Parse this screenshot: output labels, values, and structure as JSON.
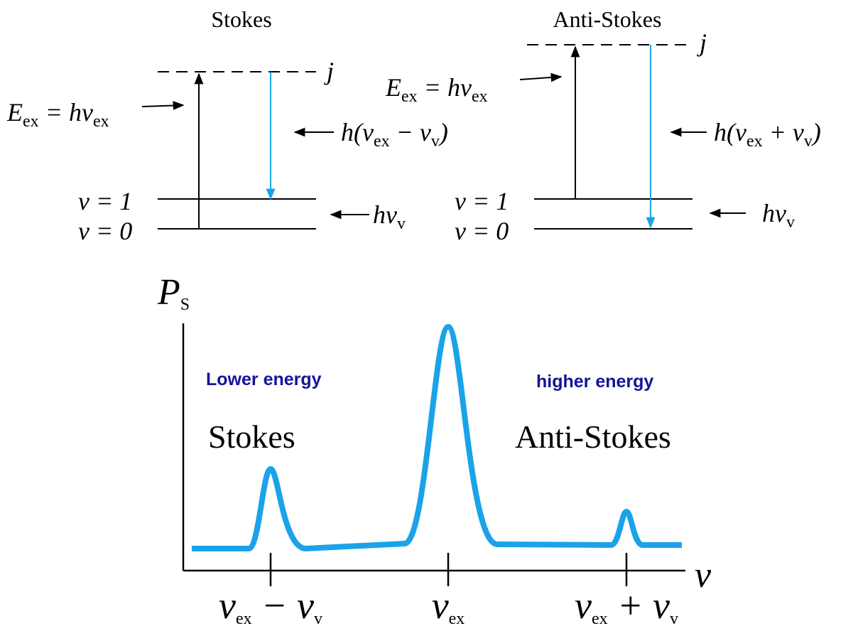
{
  "stokes": {
    "title": "Stokes",
    "virtual_level": "j",
    "excitation": [
      {
        "t": "E"
      },
      {
        "s": "ex"
      },
      {
        "t": " = hν"
      },
      {
        "s": "ex"
      }
    ],
    "emission": [
      {
        "t": "h(ν"
      },
      {
        "s": "ex"
      },
      {
        "t": " − ν"
      },
      {
        "s": "v"
      },
      {
        "t": ")"
      }
    ],
    "level_1": "v = 1",
    "level_0": "v = 0",
    "vibration": [
      {
        "t": "hν"
      },
      {
        "s": "v"
      }
    ]
  },
  "anti_stokes": {
    "title": "Anti-Stokes",
    "virtual_level": "j",
    "excitation": [
      {
        "t": "E"
      },
      {
        "s": "ex"
      },
      {
        "t": " = hν"
      },
      {
        "s": "ex"
      }
    ],
    "emission": [
      {
        "t": "h(ν"
      },
      {
        "s": "ex"
      },
      {
        "t": " + ν"
      },
      {
        "s": "v"
      },
      {
        "t": ")"
      }
    ],
    "level_1": "v = 1",
    "level_0": "v = 0",
    "vibration": [
      {
        "t": "hν"
      },
      {
        "s": "v"
      }
    ]
  },
  "spectrum": {
    "y_label": [
      {
        "t": "P"
      },
      {
        "s": "S"
      }
    ],
    "x_label": "ν",
    "lower_note": "Lower energy",
    "higher_note": "higher energy",
    "stokes_label": "Stokes",
    "anti_stokes_label": "Anti-Stokes",
    "ticks": [
      [
        {
          "t": "ν"
        },
        {
          "s": "ex"
        },
        {
          "t": " − ν"
        },
        {
          "s": "v"
        }
      ],
      [
        {
          "t": "ν"
        },
        {
          "s": "ex"
        }
      ],
      [
        {
          "t": "ν"
        },
        {
          "s": "ex"
        },
        {
          "t": " + ν"
        },
        {
          "s": "v"
        }
      ]
    ]
  }
}
